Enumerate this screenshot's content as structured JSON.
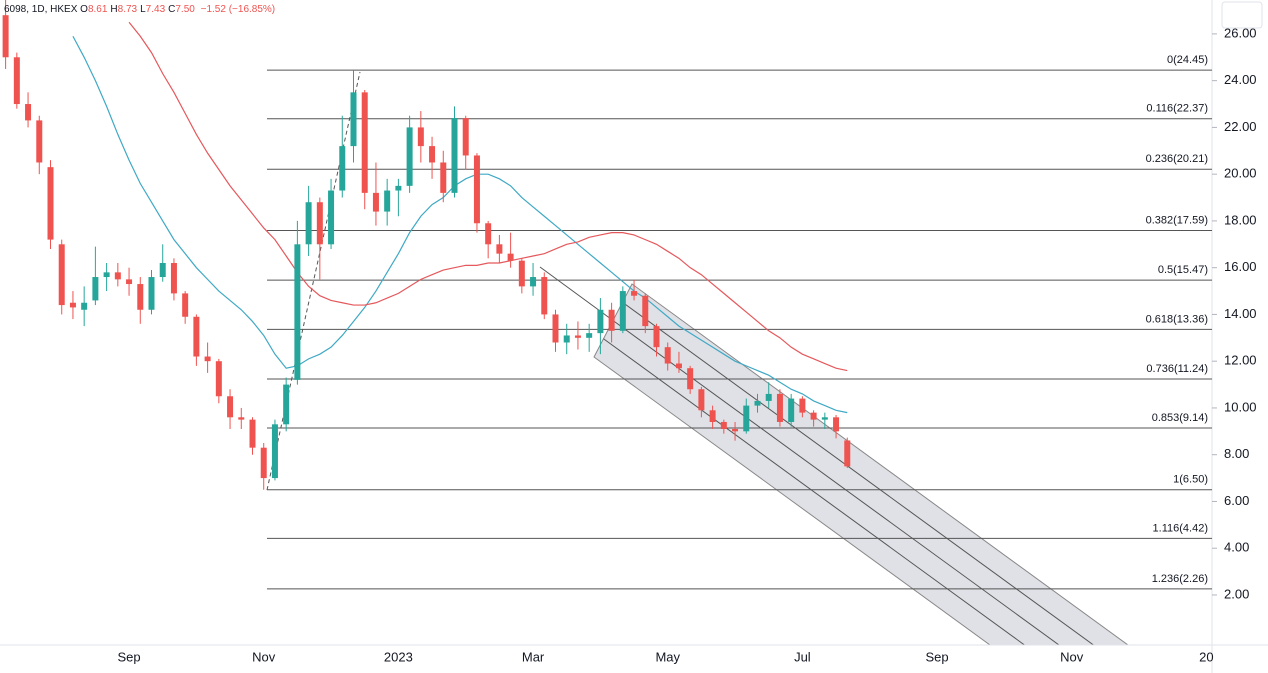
{
  "chart_data": {
    "type": "candlestick",
    "symbol": "6098, 1D, HKEX",
    "legend": [
      {
        "label": "O",
        "value": "8.61"
      },
      {
        "label": "H",
        "value": "8.73"
      },
      {
        "label": "L",
        "value": "7.43"
      },
      {
        "label": "C",
        "value": "7.50"
      }
    ],
    "change": "−1.52 (−16.85%)",
    "up_color": "#26a69a",
    "down_color": "#ef5350",
    "categories": [
      null,
      null,
      null,
      null,
      null,
      null,
      null,
      null,
      null,
      null,
      null,
      "Sep",
      null,
      null,
      null,
      null,
      null,
      null,
      null,
      null,
      null,
      null,
      null,
      "Nov",
      null,
      null,
      null,
      null,
      null,
      null,
      null,
      null,
      null,
      null,
      null,
      "2023",
      null,
      null,
      null,
      null,
      null,
      null,
      null,
      null,
      null,
      null,
      null,
      "Mar",
      null,
      null,
      null,
      null,
      null,
      null,
      null,
      null,
      null,
      null,
      null,
      "May",
      null,
      null,
      null,
      null,
      null,
      null,
      null,
      null,
      null,
      null,
      null,
      "Jul",
      null,
      null,
      null,
      null,
      null,
      null,
      null,
      null,
      null,
      null,
      null,
      "Sep",
      null,
      null,
      null,
      null,
      null,
      null,
      null,
      null,
      null,
      null,
      null,
      "Nov",
      null,
      null,
      null,
      null,
      null,
      null,
      null,
      null,
      null,
      null,
      null,
      "20"
    ],
    "open": [
      26.8,
      25,
      23,
      22.3,
      20.3,
      17,
      14.5,
      14.2,
      14.6,
      15.6,
      15.8,
      15.5,
      15.3,
      14.2,
      15.6,
      16.2,
      14.9,
      13.9,
      12.2,
      12,
      10.5,
      9.6,
      9.5,
      8.3,
      7.0,
      9.3,
      11.2,
      17,
      18.8,
      17,
      19.3,
      21.2,
      23.5,
      19.2,
      18.4,
      19.3,
      19.5,
      22,
      21.2,
      20.5,
      19.2,
      22.4,
      20.8,
      17.9,
      17,
      16.6,
      16.3,
      15.2,
      15.6,
      14,
      12.8,
      13.1,
      13,
      13.2,
      14.2,
      13.3,
      15,
      14.8,
      13.5,
      12.6,
      11.9,
      11.7,
      10.8,
      9.9,
      9.4,
      9.1,
      9.0,
      10.1,
      10.3,
      10.6,
      9.4,
      10.4,
      9.8,
      9.5,
      9.6,
      8.61,
      null,
      null,
      null,
      null,
      null,
      null,
      null,
      null,
      null,
      null,
      null,
      null,
      null,
      null,
      null,
      null,
      null,
      null,
      null,
      null,
      null,
      null,
      null,
      null,
      null,
      null,
      null,
      null,
      null,
      null,
      null,
      null
    ],
    "high": [
      27.5,
      25.2,
      23.5,
      22.5,
      20.6,
      17.2,
      15,
      15.2,
      16.9,
      16.2,
      16.2,
      16,
      15.6,
      15.9,
      17,
      16.4,
      15,
      14,
      12.8,
      12.1,
      10.8,
      10,
      9.6,
      8.5,
      9.5,
      11.3,
      18,
      19.5,
      19,
      19.8,
      22.5,
      24.45,
      23.6,
      20.5,
      19.8,
      19.8,
      22.5,
      22.7,
      21.6,
      21,
      22.9,
      22.5,
      20.9,
      18,
      17.4,
      17.5,
      16.4,
      16.2,
      15.8,
      14.2,
      13.6,
      13.7,
      13.6,
      14.7,
      14.5,
      15.2,
      15.47,
      14.9,
      13.6,
      12.8,
      12.4,
      11.8,
      10.9,
      10.1,
      9.5,
      9.4,
      10.4,
      10.6,
      11.1,
      10.8,
      10.6,
      10.5,
      9.9,
      9.8,
      9.7,
      8.73,
      null,
      null,
      null,
      null,
      null,
      null,
      null,
      null,
      null,
      null,
      null,
      null,
      null,
      null,
      null,
      null,
      null,
      null,
      null,
      null,
      null,
      null,
      null,
      null,
      null,
      null,
      null,
      null,
      null,
      null,
      null,
      null
    ],
    "low": [
      24.5,
      22.8,
      22,
      20,
      16.8,
      14,
      13.8,
      13.5,
      14.4,
      15.0,
      15.2,
      14.8,
      13.6,
      14,
      15.4,
      14.6,
      13.6,
      11.8,
      11.5,
      10.2,
      9.1,
      9.1,
      8.0,
      6.5,
      6.9,
      9.0,
      11,
      16.5,
      15.5,
      16.8,
      19,
      20.5,
      18.5,
      17.8,
      17.8,
      18.2,
      19.2,
      20.5,
      19.8,
      18.8,
      19,
      20.2,
      17.5,
      16.4,
      16.2,
      16.0,
      14.9,
      14.8,
      13.8,
      12.4,
      12.3,
      12.5,
      12.4,
      12.3,
      12.8,
      13.2,
      14.6,
      13.2,
      12.2,
      11.6,
      11.5,
      10.6,
      9.6,
      9.1,
      8.9,
      8.6,
      8.9,
      9.8,
      10,
      9.2,
      9.2,
      9.6,
      9.2,
      9.1,
      8.7,
      7.43,
      null,
      null,
      null,
      null,
      null,
      null,
      null,
      null,
      null,
      null,
      null,
      null,
      null,
      null,
      null,
      null,
      null,
      null,
      null,
      null,
      null,
      null,
      null,
      null,
      null,
      null,
      null,
      null,
      null,
      null,
      null,
      null
    ],
    "close": [
      25.0,
      23.0,
      22.3,
      20.5,
      17.2,
      14.4,
      14.3,
      14.5,
      15.6,
      15.8,
      15.5,
      15.3,
      14.2,
      15.6,
      16.2,
      14.9,
      13.9,
      12.2,
      12.0,
      10.5,
      9.6,
      9.5,
      8.3,
      7.0,
      9.3,
      11.0,
      17,
      18.8,
      17.0,
      19.3,
      21.2,
      23.5,
      19.2,
      18.4,
      19.3,
      19.5,
      22.0,
      21.2,
      20.5,
      19.2,
      22.4,
      20.8,
      17.9,
      17.0,
      16.6,
      16.3,
      15.2,
      15.6,
      14.0,
      12.8,
      13.1,
      13.0,
      13.2,
      14.2,
      13.3,
      15.0,
      14.8,
      13.5,
      12.6,
      11.9,
      11.7,
      10.8,
      9.9,
      9.4,
      9.1,
      9.0,
      10.1,
      10.3,
      10.6,
      9.4,
      10.4,
      9.8,
      9.5,
      9.6,
      9.0,
      7.5,
      null,
      null,
      null,
      null,
      null,
      null,
      null,
      null,
      null,
      null,
      null,
      null,
      null,
      null,
      null,
      null,
      null,
      null,
      null,
      null,
      null,
      null,
      null,
      null,
      null,
      null,
      null,
      null,
      null,
      null,
      null,
      null
    ],
    "lines": [
      {
        "color": "#3fa9c5",
        "values": [
          null,
          null,
          null,
          null,
          null,
          null,
          25.9,
          25.0,
          24.0,
          22.9,
          21.7,
          20.6,
          19.6,
          18.8,
          18.0,
          17.2,
          16.6,
          16.0,
          15.5,
          15.0,
          14.6,
          14.2,
          13.7,
          13.1,
          12.3,
          11.7,
          11.8,
          12.1,
          12.3,
          12.6,
          13.1,
          13.7,
          14.3,
          15.0,
          15.8,
          16.6,
          17.5,
          18.2,
          18.7,
          19.0,
          19.5,
          19.8,
          20.0,
          20.0,
          19.8,
          19.5,
          19.0,
          18.6,
          18.2,
          17.8,
          17.4,
          17.0,
          16.6,
          16.2,
          15.8,
          15.4,
          15.0,
          14.7,
          14.3,
          13.9,
          13.5,
          13.2,
          12.9,
          12.6,
          12.3,
          12.0,
          11.8,
          11.6,
          11.4,
          11.1,
          10.8,
          10.6,
          10.3,
          10.1,
          9.9,
          9.8,
          null,
          null,
          null,
          null,
          null,
          null,
          null,
          null,
          null,
          null,
          null,
          null,
          null,
          null,
          null,
          null,
          null,
          null,
          null,
          null,
          null,
          null,
          null,
          null,
          null,
          null,
          null,
          null,
          null,
          null,
          null,
          null
        ]
      },
      {
        "color": "#e5585c",
        "values": [
          null,
          null,
          null,
          null,
          null,
          null,
          null,
          null,
          null,
          null,
          null,
          26.5,
          25.9,
          25.2,
          24.3,
          23.5,
          22.6,
          21.7,
          20.9,
          20.2,
          19.5,
          18.9,
          18.3,
          17.7,
          17.2,
          16.5,
          15.8,
          15.2,
          14.8,
          14.6,
          14.5,
          14.4,
          14.4,
          14.5,
          14.7,
          14.9,
          15.2,
          15.5,
          15.7,
          15.9,
          16.0,
          16.1,
          16.1,
          16.2,
          16.2,
          16.3,
          16.4,
          16.5,
          16.6,
          16.8,
          17.0,
          17.1,
          17.3,
          17.4,
          17.5,
          17.5,
          17.4,
          17.2,
          17.0,
          16.7,
          16.4,
          16.0,
          15.7,
          15.3,
          14.9,
          14.5,
          14.1,
          13.7,
          13.3,
          13.0,
          12.6,
          12.3,
          12.1,
          11.9,
          11.7,
          11.6,
          null,
          null,
          null,
          null,
          null,
          null,
          null,
          null,
          null,
          null,
          null,
          null,
          null,
          null,
          null,
          null,
          null,
          null,
          null,
          null,
          null,
          null,
          null,
          null,
          null,
          null,
          null,
          null,
          null,
          null,
          null,
          null
        ]
      }
    ],
    "fib_levels": [
      {
        "value": 24.45,
        "label": "0(24.45)"
      },
      {
        "value": 22.37,
        "label": "0.116(22.37)"
      },
      {
        "value": 20.21,
        "label": "0.236(20.21)"
      },
      {
        "value": 17.59,
        "label": "0.382(17.59)"
      },
      {
        "value": 15.47,
        "label": "0.5(15.47)"
      },
      {
        "value": 13.36,
        "label": "0.618(13.36)"
      },
      {
        "value": 11.24,
        "label": "0.736(11.24)"
      },
      {
        "value": 9.14,
        "label": "0.853(9.14)"
      },
      {
        "value": 6.5,
        "label": "1(6.50)"
      },
      {
        "value": 4.42,
        "label": "1.116(4.42)"
      },
      {
        "value": 2.26,
        "label": "1.236(2.26)"
      }
    ],
    "ylim": [
      -0.14,
      27.45
    ],
    "yticks": [
      {
        "value": 2,
        "label": "2.00"
      },
      {
        "value": 4,
        "label": "4.00"
      },
      {
        "value": 6,
        "label": "6.00"
      },
      {
        "value": 8,
        "label": "8.00"
      },
      {
        "value": 10,
        "label": "10.00"
      },
      {
        "value": 12,
        "label": "12.00"
      },
      {
        "value": 14,
        "label": "14.00"
      },
      {
        "value": 16,
        "label": "16.00"
      },
      {
        "value": 18,
        "label": "18.00"
      },
      {
        "value": 20,
        "label": "20.00"
      },
      {
        "value": 22,
        "label": "22.00"
      },
      {
        "value": 24,
        "label": "24.00"
      },
      {
        "value": 26,
        "label": "26.00"
      }
    ],
    "grid": false
  }
}
